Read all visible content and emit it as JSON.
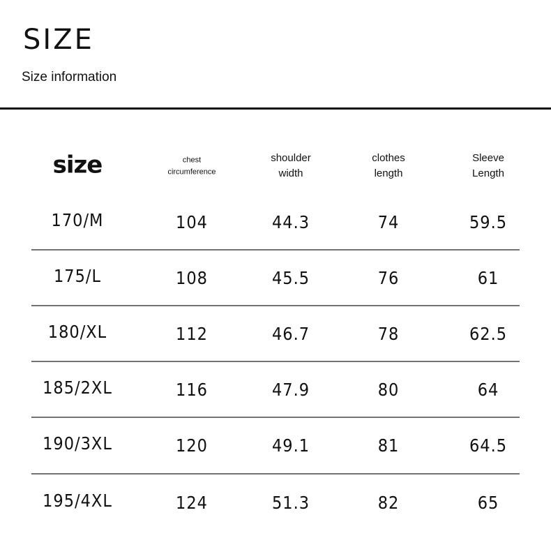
{
  "header": {
    "title": "SIZE",
    "subtitle": "Size information"
  },
  "table": {
    "columns": [
      [
        "size"
      ],
      [
        "chest",
        "circumference"
      ],
      [
        "shoulder",
        "width"
      ],
      [
        "clothes",
        "length"
      ],
      [
        "Sleeve",
        "Length"
      ]
    ],
    "rows": [
      [
        "170/M",
        104,
        44.3,
        74,
        59.5
      ],
      [
        "175/L",
        108,
        45.5,
        76,
        61
      ],
      [
        "180/XL",
        112,
        46.7,
        78,
        62.5
      ],
      [
        "185/2XL",
        116,
        47.9,
        80,
        64
      ],
      [
        "190/3XL",
        120,
        49.1,
        81,
        64.5
      ],
      [
        "195/4XL",
        124,
        51.3,
        82,
        65
      ]
    ]
  }
}
